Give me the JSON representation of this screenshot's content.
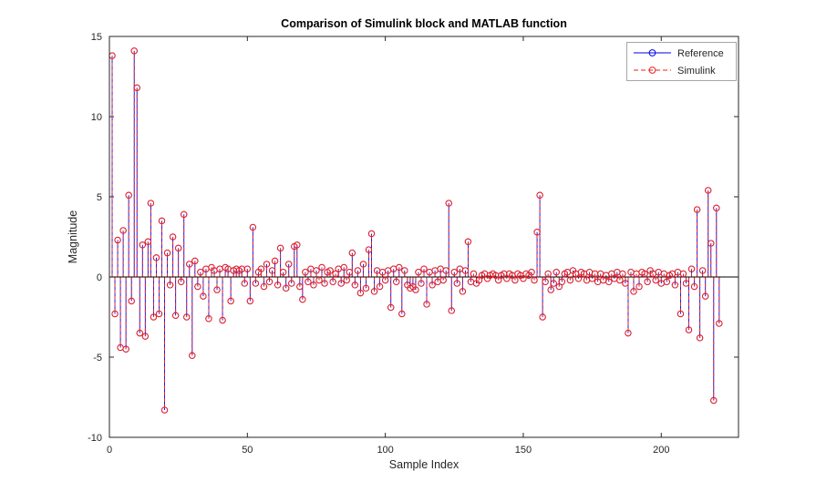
{
  "figure": {
    "title": "Comparison of Simulink block and MATLAB function",
    "xlabel": "Sample Index",
    "ylabel": "Magnitude"
  },
  "legend": {
    "position": "top-right",
    "items": [
      {
        "label": "Reference",
        "color": "#0000e6",
        "line_style": "solid",
        "marker": "open-circle"
      },
      {
        "label": "Simulink",
        "color": "#eb2222",
        "line_style": "dashed",
        "marker": "open-circle"
      }
    ]
  },
  "axes": {
    "xlim": [
      0,
      228
    ],
    "ylim": [
      -10,
      15
    ],
    "x_ticks": [
      0,
      50,
      100,
      150,
      200
    ],
    "y_ticks": [
      -10,
      -5,
      0,
      5,
      10,
      15
    ],
    "grid": false,
    "box": true,
    "baseline": 0,
    "axis_color": "#262626",
    "baseline_color": "#000000"
  },
  "chart_data": {
    "type": "stem",
    "title": "Comparison of Simulink block and MATLAB function",
    "xlabel": "Sample Index",
    "ylabel": "Magnitude",
    "xlim": [
      0,
      228
    ],
    "ylim": [
      -10,
      15
    ],
    "x_ticks": [
      0,
      50,
      100,
      150,
      200
    ],
    "y_ticks": [
      -10,
      -5,
      0,
      5,
      10,
      15
    ],
    "grid": false,
    "legend_position": "top-right",
    "x_start_index": 1,
    "series": [
      {
        "name": "Reference",
        "color": "#0000e6",
        "line_style": "solid",
        "marker": "open-circle",
        "values": [
          13.8,
          -2.3,
          2.3,
          -4.4,
          2.9,
          -4.5,
          5.1,
          -1.5,
          14.1,
          11.8,
          -3.5,
          2.0,
          -3.7,
          2.2,
          4.6,
          -2.5,
          1.2,
          -2.3,
          3.5,
          -8.3,
          1.5,
          -0.5,
          2.5,
          -2.4,
          1.8,
          -0.3,
          3.9,
          -2.5,
          0.8,
          -4.9,
          1.0,
          -0.6,
          0.3,
          -1.2,
          0.5,
          -2.6,
          0.6,
          0.4,
          -0.8,
          0.5,
          -2.7,
          0.6,
          0.5,
          -1.5,
          0.4,
          0.5,
          0.4,
          0.5,
          -0.4,
          0.5,
          -1.5,
          3.1,
          -0.4,
          0.3,
          0.5,
          -0.6,
          0.8,
          -0.3,
          0.4,
          1.0,
          -0.5,
          1.8,
          0.3,
          -0.7,
          0.8,
          -0.4,
          1.9,
          2.0,
          -0.6,
          -1.4,
          0.3,
          -0.3,
          0.5,
          -0.5,
          0.4,
          -0.2,
          0.6,
          -0.4,
          0.3,
          0.4,
          -0.3,
          0.2,
          0.5,
          -0.4,
          0.6,
          -0.2,
          0.3,
          1.5,
          -0.5,
          0.4,
          -1.0,
          0.8,
          -0.7,
          1.7,
          2.7,
          -0.9,
          0.4,
          -0.6,
          0.3,
          -0.2,
          0.4,
          -1.9,
          0.5,
          -0.3,
          0.6,
          -2.3,
          0.4,
          -0.5,
          -0.7,
          -0.6,
          -0.8,
          0.3,
          -0.4,
          0.5,
          -1.7,
          0.3,
          -0.5,
          0.4,
          -0.3,
          0.5,
          -0.2,
          0.4,
          4.6,
          -2.1,
          0.3,
          -0.4,
          0.5,
          -0.9,
          0.4,
          2.2,
          -0.3,
          0.2,
          -0.4,
          -0.2,
          0.1,
          0.2,
          -0.1,
          0.1,
          0.2,
          0.1,
          -0.2,
          0.1,
          0.2,
          -0.1,
          0.2,
          0.1,
          -0.2,
          0.2,
          0.1,
          -0.1,
          0.2,
          0.1,
          0.3,
          -0.2,
          2.8,
          5.1,
          -2.5,
          -0.3,
          0.2,
          -0.8,
          -0.4,
          0.3,
          -0.6,
          -0.3,
          0.2,
          0.3,
          -0.2,
          0.4,
          0.2,
          -0.1,
          0.3,
          0.2,
          -0.2,
          0.3,
          -0.1,
          0.2,
          -0.3,
          0.2,
          -0.2,
          0.1,
          -0.3,
          0.2,
          -0.1,
          0.3,
          -0.2,
          0.2,
          -0.4,
          -3.5,
          0.3,
          -0.9,
          0.2,
          -0.6,
          0.3,
          0.2,
          -0.3,
          0.4,
          0.2,
          -0.2,
          0.3,
          -0.4,
          0.2,
          -0.3,
          0.1,
          0.2,
          -0.5,
          0.3,
          -2.3,
          0.2,
          -0.4,
          -3.3,
          0.5,
          -0.6,
          4.2,
          -3.8,
          0.4,
          -1.2,
          5.4,
          2.1,
          -7.7,
          4.3,
          -2.9
        ]
      },
      {
        "name": "Simulink",
        "color": "#eb2222",
        "line_style": "dashed",
        "marker": "open-circle",
        "values_same_as": "Reference",
        "note": "Red dashed stems exactly overlay the blue Reference stems (the two series are identical)."
      }
    ]
  }
}
